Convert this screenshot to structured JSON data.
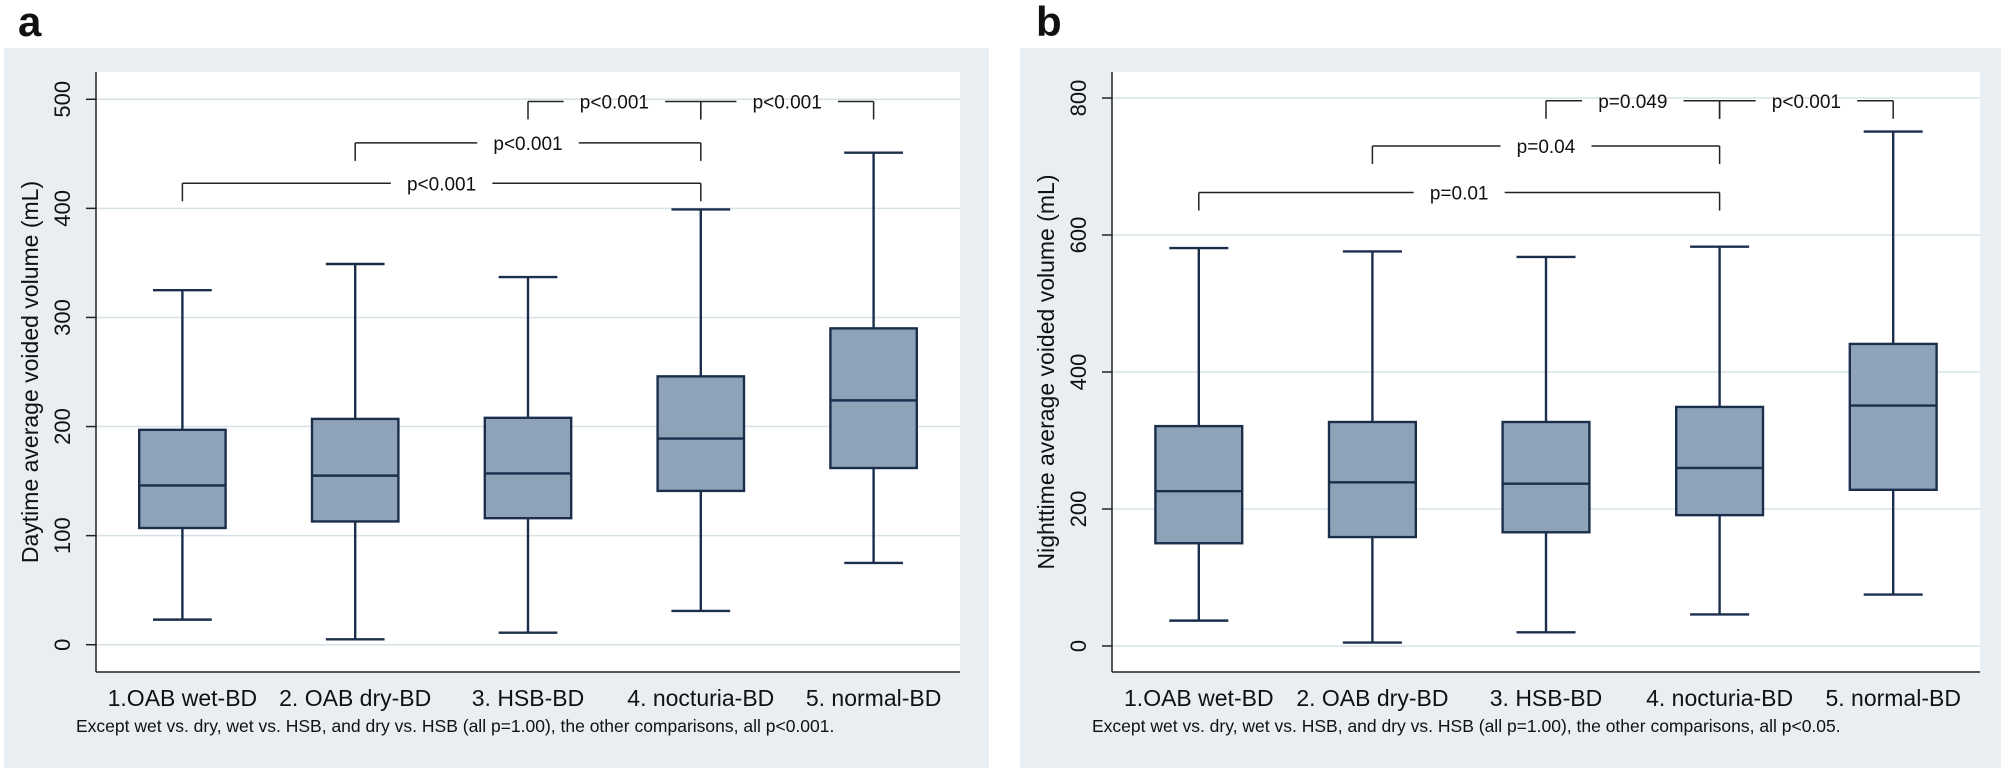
{
  "colors": {
    "panel_bg": "#e8eef2",
    "plot_bg": "#ffffff",
    "box_fill": "#8fa3b8",
    "box_stroke": "#1b2f4d",
    "grid": "#d6e2e6",
    "text": "#111111"
  },
  "chart_data": [
    {
      "panel_label": "a",
      "type": "boxplot",
      "ylabel": "Daytime average voided volume (mL)",
      "ylim": [
        -25,
        525
      ],
      "yticks": [
        "0",
        "100",
        "200",
        "300",
        "400",
        "500"
      ],
      "ytick_values": [
        0,
        100,
        200,
        300,
        400,
        500
      ],
      "categories": [
        "1.OAB wet-BD",
        "2. OAB dry-BD",
        "3. HSB-BD",
        "4. nocturia-BD",
        "5. normal-BD"
      ],
      "boxes": [
        {
          "min": 23,
          "q1": 107,
          "median": 146,
          "q3": 197,
          "max": 325
        },
        {
          "min": 5,
          "q1": 113,
          "median": 155,
          "q3": 207,
          "max": 349
        },
        {
          "min": 11,
          "q1": 116,
          "median": 157,
          "q3": 208,
          "max": 337
        },
        {
          "min": 31,
          "q1": 141,
          "median": 189,
          "q3": 246,
          "max": 399
        },
        {
          "min": 75,
          "q1": 162,
          "median": 224,
          "q3": 290,
          "max": 451
        }
      ],
      "comparisons": [
        {
          "from": 3,
          "to": 4,
          "y": 498,
          "label": "p<0.001"
        },
        {
          "from": 4,
          "to": 5,
          "y": 498,
          "label": "p<0.001"
        },
        {
          "from": 2,
          "to": 4,
          "y": 460,
          "label": "p<0.001"
        },
        {
          "from": 1,
          "to": 4,
          "y": 423,
          "label": "p<0.001"
        }
      ],
      "note": "Except wet vs. dry, wet vs. HSB, and dry vs. HSB (all p=1.00), the other comparisons, all p<0.001."
    },
    {
      "panel_label": "b",
      "type": "boxplot",
      "ylabel": "Nighttime average voided volume (mL)",
      "ylim": [
        -38,
        838
      ],
      "yticks": [
        "0",
        "200",
        "400",
        "600",
        "800"
      ],
      "ytick_values": [
        0,
        200,
        400,
        600,
        800
      ],
      "categories": [
        "1.OAB wet-BD",
        "2. OAB dry-BD",
        "3. HSB-BD",
        "4. nocturia-BD",
        "5. normal-BD"
      ],
      "boxes": [
        {
          "min": 37,
          "q1": 150,
          "median": 226,
          "q3": 321,
          "max": 581
        },
        {
          "min": 5,
          "q1": 159,
          "median": 239,
          "q3": 327,
          "max": 576
        },
        {
          "min": 20,
          "q1": 166,
          "median": 237,
          "q3": 327,
          "max": 568
        },
        {
          "min": 46,
          "q1": 191,
          "median": 260,
          "q3": 349,
          "max": 583
        },
        {
          "min": 75,
          "q1": 228,
          "median": 351,
          "q3": 441,
          "max": 751
        }
      ],
      "comparisons": [
        {
          "from": 3,
          "to": 4,
          "y": 796,
          "label": "p=0.049"
        },
        {
          "from": 4,
          "to": 5,
          "y": 796,
          "label": "p<0.001"
        },
        {
          "from": 2,
          "to": 4,
          "y": 730,
          "label": "p=0.04"
        },
        {
          "from": 1,
          "to": 4,
          "y": 662,
          "label": "p=0.01"
        }
      ],
      "note": "Except wet vs. dry, wet vs. HSB, and dry vs. HSB (all p=1.00), the other comparisons, all p<0.05."
    }
  ]
}
